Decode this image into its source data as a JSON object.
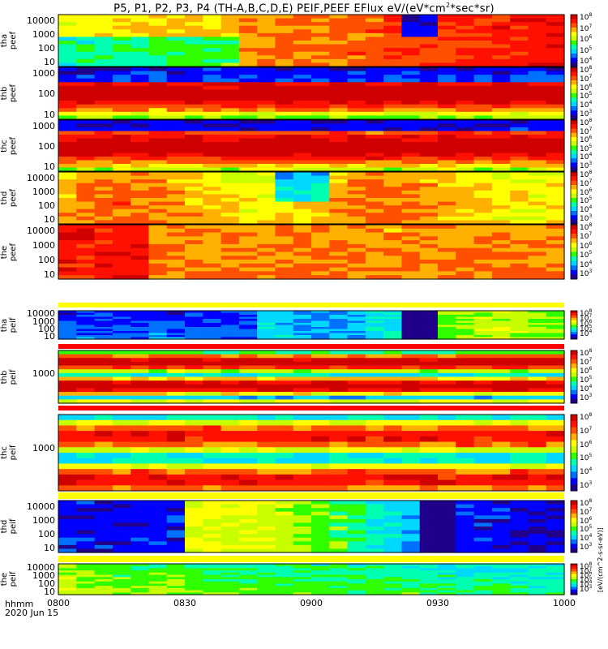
{
  "title": "P5, P1, P2, P3, P4 (TH-A,B,C,D,E) PEIF,PEEF EFlux eV/(eV*cm^2*sec*sr)",
  "time_label_line1": "hhmm",
  "time_label_line2": "2020 Jun 15",
  "cb_unit_text": "[eV/(cm^2-s-sr-eV)]",
  "chart_data": [
    {
      "type": "heatmap",
      "panel": "tha peef",
      "ylabel_line1": "tha",
      "ylabel_line2": "peef",
      "yticks": [
        "10000",
        "1000",
        "100",
        "10"
      ],
      "yscale": "log",
      "colorbar": [
        "10^8",
        "10^7",
        "10^6",
        "10^5",
        "10^4"
      ],
      "x": [
        "0800",
        "0830",
        "0900",
        "0930",
        "1000"
      ]
    },
    {
      "type": "heatmap",
      "panel": "thb peef",
      "ylabel_line1": "thb",
      "ylabel_line2": "peef",
      "yticks": [
        "1000",
        "100",
        "10"
      ],
      "yscale": "log",
      "colorbar": [
        "10^8",
        "10^7",
        "10^6",
        "10^5",
        "10^4",
        "10^3"
      ],
      "x": [
        "0800",
        "0830",
        "0900",
        "0930",
        "1000"
      ]
    },
    {
      "type": "heatmap",
      "panel": "thc peef",
      "ylabel_line1": "thc",
      "ylabel_line2": "peef",
      "yticks": [
        "1000",
        "100",
        "10"
      ],
      "yscale": "log",
      "colorbar": [
        "10^8",
        "10^7",
        "10^6",
        "10^5",
        "10^4",
        "10^3"
      ],
      "x": [
        "0800",
        "0830",
        "0900",
        "0930",
        "1000"
      ]
    },
    {
      "type": "heatmap",
      "panel": "thd peef",
      "ylabel_line1": "thd",
      "ylabel_line2": "peef",
      "yticks": [
        "10000",
        "1000",
        "100",
        "10"
      ],
      "yscale": "log",
      "colorbar": [
        "10^8",
        "10^7",
        "10^6",
        "10^5",
        "10^4",
        "10^3"
      ],
      "x": [
        "0800",
        "0830",
        "0900",
        "0930",
        "1000"
      ]
    },
    {
      "type": "heatmap",
      "panel": "the peef",
      "ylabel_line1": "the",
      "ylabel_line2": "peef",
      "yticks": [
        "10000",
        "1000",
        "100",
        "10"
      ],
      "yscale": "log",
      "colorbar": [
        "10^8",
        "10^7",
        "10^6",
        "10^5",
        "10^4",
        "10^3"
      ],
      "x": [
        "0800",
        "0830",
        "0900",
        "0930",
        "1000"
      ]
    },
    {
      "type": "heatmap",
      "panel": "tha peif",
      "ylabel_line1": "tha",
      "ylabel_line2": "peif",
      "yticks": [
        "10000",
        "1000",
        "100",
        "10"
      ],
      "yscale": "log",
      "colorbar": [
        "10^8",
        "10^7",
        "10^6",
        "10^5",
        "10^4"
      ],
      "x": [
        "0800",
        "0830",
        "0900",
        "0930",
        "1000"
      ]
    },
    {
      "type": "heatmap",
      "panel": "thb peif",
      "ylabel_line1": "thb",
      "ylabel_line2": "peif",
      "yticks": [
        "1000"
      ],
      "yscale": "log",
      "colorbar": [
        "10^8",
        "10^7",
        "10^6",
        "10^5",
        "10^4",
        "10^3"
      ],
      "x": [
        "0800",
        "0830",
        "0900",
        "0930",
        "1000"
      ]
    },
    {
      "type": "heatmap",
      "panel": "thc peif",
      "ylabel_line1": "thc",
      "ylabel_line2": "peif",
      "yticks": [
        "1000"
      ],
      "yscale": "log",
      "colorbar": [
        "10^8",
        "10^7",
        "10^6",
        "10^5",
        "10^4",
        "10^3"
      ],
      "x": [
        "0800",
        "0830",
        "0900",
        "0930",
        "1000"
      ]
    },
    {
      "type": "heatmap",
      "panel": "thd peif",
      "ylabel_line1": "thd",
      "ylabel_line2": "peif",
      "yticks": [
        "10000",
        "1000",
        "100",
        "10"
      ],
      "yscale": "log",
      "colorbar": [
        "10^8",
        "10^7",
        "10^6",
        "10^5",
        "10^4",
        "10^3"
      ],
      "x": [
        "0800",
        "0830",
        "0900",
        "0930",
        "1000"
      ]
    },
    {
      "type": "heatmap",
      "panel": "the peif",
      "ylabel_line1": "the",
      "ylabel_line2": "peif",
      "yticks": [
        "10000",
        "1000",
        "100",
        "10"
      ],
      "yscale": "log",
      "colorbar": [
        "10^8",
        "10^7",
        "10^6",
        "10^5",
        "10^4",
        "10^3"
      ],
      "x": [
        "0800",
        "0830",
        "0900",
        "0930",
        "1000"
      ]
    }
  ]
}
